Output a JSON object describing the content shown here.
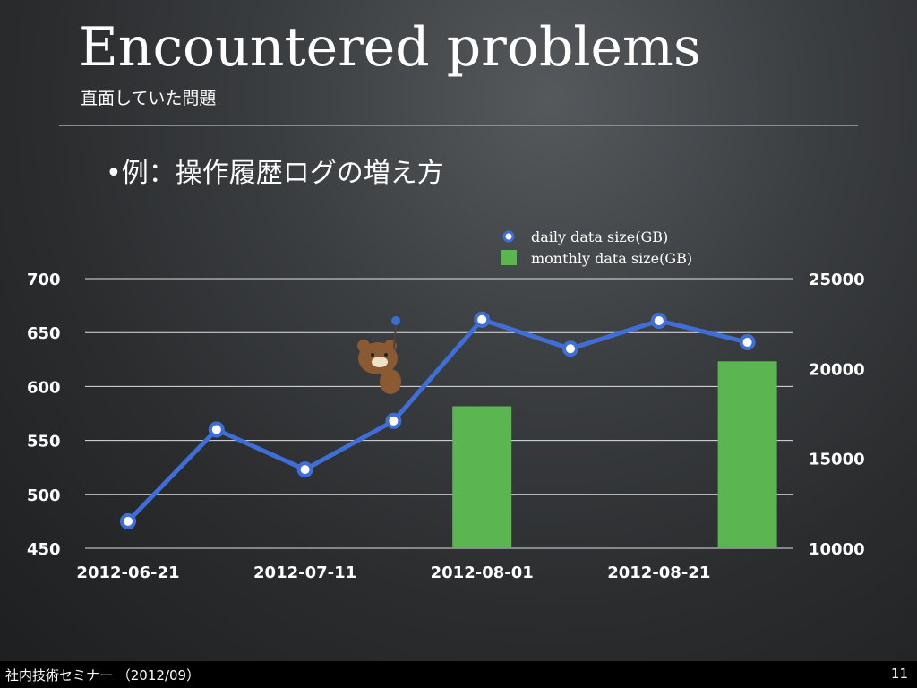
{
  "slide": {
    "title": "Encountered problems",
    "subtitle": "直面していた問題",
    "bullet": "•例：操作履歴ログの増え方",
    "footer_left": "社内技術セミナー （2012/09）",
    "footer_right": "11"
  },
  "colors": {
    "line": "#3f6fd6",
    "bar": "#5bb550",
    "grid": "#ffffff"
  },
  "chart_data": {
    "type": "line",
    "x": [
      "2012-06-21",
      "2012-07-01",
      "2012-07-11",
      "2012-07-21",
      "2012-08-01",
      "2012-08-11",
      "2012-08-21",
      "2012-09-01"
    ],
    "xticks": [
      "2012-06-21",
      "2012-07-11",
      "2012-08-01",
      "2012-08-21"
    ],
    "series": [
      {
        "name": "daily data size(GB)",
        "type": "line",
        "axis": "left",
        "values": [
          475,
          560,
          523,
          568,
          662,
          635,
          661,
          641
        ]
      },
      {
        "name": "monthly data size(GB)",
        "type": "bar",
        "axis": "right",
        "values": [
          null,
          null,
          null,
          null,
          17900,
          null,
          null,
          20400
        ]
      }
    ],
    "yleft": {
      "lim": [
        450,
        700
      ],
      "ticks": [
        "450",
        "500",
        "550",
        "600",
        "650",
        "700"
      ]
    },
    "yright": {
      "lim": [
        10000,
        25000
      ],
      "ticks": [
        "10000",
        "15000",
        "20000",
        "25000"
      ]
    },
    "legend": "top-right",
    "grid": true
  }
}
